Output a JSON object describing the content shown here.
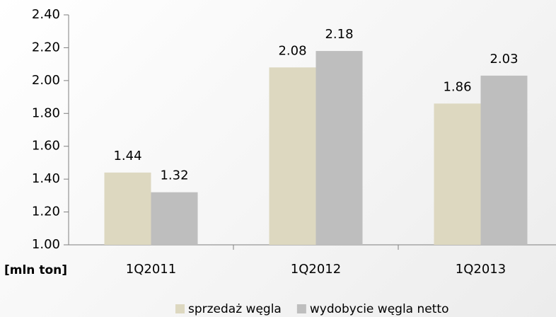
{
  "chart_data": {
    "type": "bar",
    "categories": [
      "1Q2011",
      "1Q2012",
      "1Q2013"
    ],
    "series": [
      {
        "name": "sprzedaż węgla",
        "color": "#ddd8c0",
        "values": [
          1.44,
          2.08,
          1.86
        ]
      },
      {
        "name": "wydobycie węgla netto",
        "color": "#bebebe",
        "values": [
          1.32,
          2.18,
          2.03
        ]
      }
    ],
    "y_label": "[mln ton]",
    "ylim": [
      1,
      2.4
    ],
    "yticks": [
      {
        "value": 1,
        "label": "1.00"
      },
      {
        "value": 1.2,
        "label": "1.20"
      },
      {
        "value": 1.4,
        "label": "1.40"
      },
      {
        "value": 1.6,
        "label": "1.60"
      },
      {
        "value": 1.8,
        "label": "1.80"
      },
      {
        "value": 2,
        "label": "2.00"
      },
      {
        "value": 2.2,
        "label": "2.20"
      },
      {
        "value": 2.4,
        "label": "2.40"
      }
    ],
    "grid": false,
    "legend": "bottom"
  }
}
